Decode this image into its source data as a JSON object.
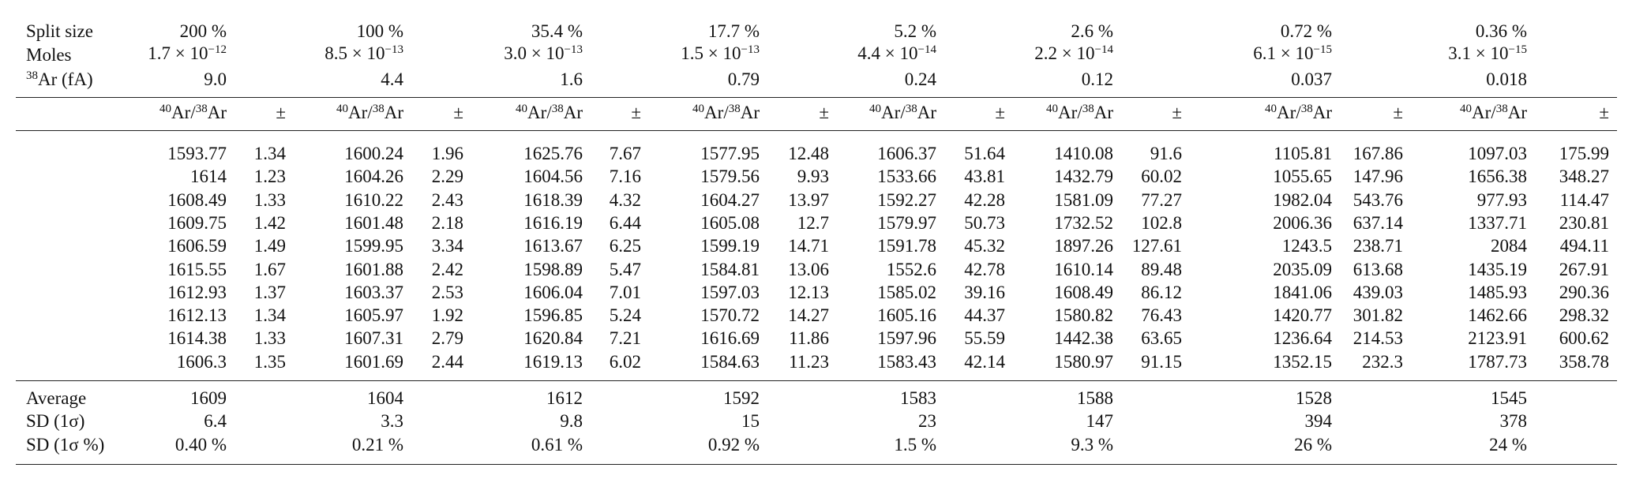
{
  "table": {
    "header_rows": [
      {
        "label": "Split size",
        "values": [
          "200 %",
          "100 %",
          "35.4 %",
          "17.7 %",
          "5.2 %",
          "2.6 %",
          "0.72 %",
          "0.36 %"
        ]
      },
      {
        "label": "Moles",
        "values": [
          {
            "base": "1.7 × 10",
            "exp": "−12"
          },
          {
            "base": "8.5 × 10",
            "exp": "−13"
          },
          {
            "base": "3.0 × 10",
            "exp": "−13"
          },
          {
            "base": "1.5 × 10",
            "exp": "−13"
          },
          {
            "base": "4.4 × 10",
            "exp": "−14"
          },
          {
            "base": "2.2 × 10",
            "exp": "−14"
          },
          {
            "base": "6.1 × 10",
            "exp": "−15"
          },
          {
            "base": "3.1 × 10",
            "exp": "−15"
          }
        ]
      },
      {
        "label": {
          "sup": "38",
          "text": "Ar (fA)"
        },
        "values": [
          "9.0",
          "4.4",
          "1.6",
          "0.79",
          "0.24",
          "0.12",
          "0.037",
          "0.018"
        ]
      }
    ],
    "ratio_header": {
      "sup1": "40",
      "t1": "Ar/",
      "sup2": "38",
      "t2": "Ar"
    },
    "pm_header": "±",
    "rows": [
      [
        1593.77,
        1.34,
        1600.24,
        1.96,
        1625.76,
        7.67,
        1577.95,
        12.48,
        1606.37,
        51.64,
        1410.08,
        91.6,
        1105.81,
        167.86,
        1097.03,
        175.99
      ],
      [
        1614,
        1.23,
        1604.26,
        2.29,
        1604.56,
        7.16,
        1579.56,
        9.93,
        1533.66,
        43.81,
        1432.79,
        60.02,
        1055.65,
        147.96,
        1656.38,
        348.27
      ],
      [
        1608.49,
        1.33,
        1610.22,
        2.43,
        1618.39,
        4.32,
        1604.27,
        13.97,
        1592.27,
        42.28,
        1581.09,
        77.27,
        1982.04,
        543.76,
        977.93,
        114.47
      ],
      [
        1609.75,
        1.42,
        1601.48,
        2.18,
        1616.19,
        6.44,
        1605.08,
        12.7,
        1579.97,
        50.73,
        1732.52,
        102.8,
        2006.36,
        637.14,
        1337.71,
        230.81
      ],
      [
        1606.59,
        1.49,
        1599.95,
        3.34,
        1613.67,
        6.25,
        1599.19,
        14.71,
        1591.78,
        45.32,
        1897.26,
        127.61,
        1243.5,
        238.71,
        2084,
        494.11
      ],
      [
        1615.55,
        1.67,
        1601.88,
        2.42,
        1598.89,
        5.47,
        1584.81,
        13.06,
        1552.6,
        42.78,
        1610.14,
        89.48,
        2035.09,
        613.68,
        1435.19,
        267.91
      ],
      [
        1612.93,
        1.37,
        1603.37,
        2.53,
        1606.04,
        7.01,
        1597.03,
        12.13,
        1585.02,
        39.16,
        1608.49,
        86.12,
        1841.06,
        439.03,
        1485.93,
        290.36
      ],
      [
        1612.13,
        1.34,
        1605.97,
        1.92,
        1596.85,
        5.24,
        1570.72,
        14.27,
        1605.16,
        44.37,
        1580.82,
        76.43,
        1420.77,
        301.82,
        1462.66,
        298.32
      ],
      [
        1614.38,
        1.33,
        1607.31,
        2.79,
        1620.84,
        7.21,
        1616.69,
        11.86,
        1597.96,
        55.59,
        1442.38,
        63.65,
        1236.64,
        214.53,
        2123.91,
        600.62
      ],
      [
        1606.3,
        1.35,
        1601.69,
        2.44,
        1619.13,
        6.02,
        1584.63,
        11.23,
        1583.43,
        42.14,
        1580.97,
        91.15,
        1352.15,
        232.3,
        1787.73,
        358.78
      ]
    ],
    "summary_rows": [
      {
        "label": "Average",
        "values": [
          1609,
          1604,
          1612,
          1592,
          1583,
          1588,
          1528,
          1545
        ]
      },
      {
        "label": "SD (1σ)",
        "values": [
          6.4,
          3.3,
          9.8,
          15,
          23,
          147,
          394,
          378
        ]
      },
      {
        "label": "SD (1σ %)",
        "values": [
          "0.40 %",
          "0.21 %",
          "0.61 %",
          "0.92 %",
          "1.5 %",
          "9.3 %",
          "26 %",
          "24 %"
        ]
      }
    ]
  }
}
